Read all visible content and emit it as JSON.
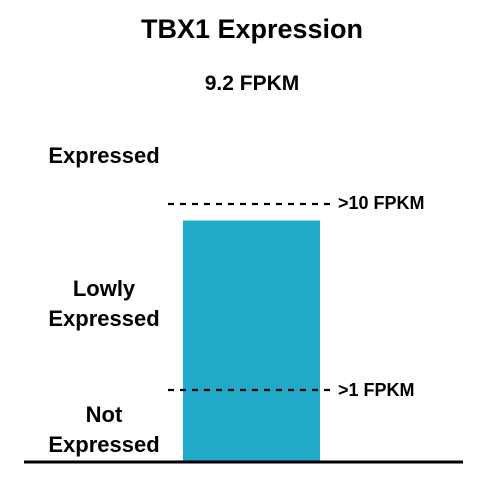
{
  "chart_data": {
    "type": "bar",
    "title": "TBX1 Expression",
    "subtitle": "9.2 FPKM",
    "value": 9.2,
    "unit": "FPKM",
    "bar_color": "#20aac8",
    "thresholds": [
      {
        "value": 10,
        "label": ">10 FPKM"
      },
      {
        "value": 1,
        "label": ">1 FPKM"
      }
    ],
    "bands": [
      {
        "lines": [
          "Expressed"
        ]
      },
      {
        "lines": [
          "Lowly",
          "Expressed"
        ]
      },
      {
        "lines": [
          "Not",
          "Expressed"
        ]
      }
    ]
  }
}
